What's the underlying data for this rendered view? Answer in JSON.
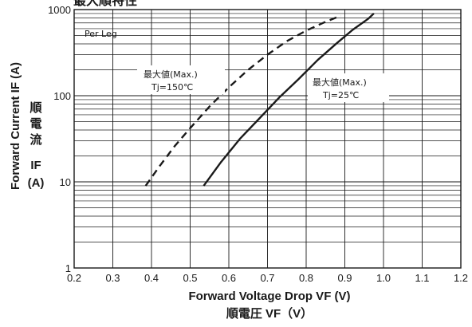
{
  "chart_data": {
    "type": "line",
    "title": "最大順特性",
    "xlabel": "Forward Voltage Drop VF (V)",
    "xlabel_jp": "順電圧 VF（V）",
    "ylabel": "Forward Current IF (A)",
    "ylabel_jp_chars": [
      "順",
      "電",
      "流"
    ],
    "ylabel_symbol": "IF",
    "ylabel_unit": "(A)",
    "xlim": [
      0.2,
      1.2
    ],
    "ylim": [
      1,
      1000
    ],
    "y_scale": "log",
    "grid": true,
    "x_ticks": [
      "0.2",
      "0.3",
      "0.4",
      "0.5",
      "0.6",
      "0.7",
      "0.8",
      "0.9",
      "1.0",
      "1.1",
      "1.2"
    ],
    "x_tick_values": [
      0.2,
      0.3,
      0.4,
      0.5,
      0.6,
      0.7,
      0.8,
      0.9,
      1.0,
      1.1,
      1.2
    ],
    "y_ticks": [
      "1",
      "10",
      "100",
      "1000"
    ],
    "y_tick_values": [
      1,
      10,
      100,
      1000
    ],
    "annotation": "Per Leg",
    "series": [
      {
        "label_line1": "最大値(Max.)",
        "label_line2": "Tj=150℃",
        "style": "dashed",
        "x": [
          0.385,
          0.42,
          0.46,
          0.5,
          0.55,
          0.6,
          0.65,
          0.7,
          0.75,
          0.8,
          0.85,
          0.89
        ],
        "y": [
          9,
          15,
          26,
          42,
          75,
          125,
          200,
          300,
          430,
          570,
          720,
          850
        ]
      },
      {
        "label_line1": "最大値(Max.)",
        "label_line2": "Tj=25℃",
        "style": "solid",
        "x": [
          0.535,
          0.58,
          0.63,
          0.68,
          0.73,
          0.78,
          0.83,
          0.88,
          0.92,
          0.96,
          0.975
        ],
        "y": [
          9,
          17,
          32,
          55,
          95,
          155,
          260,
          410,
          580,
          780,
          900
        ]
      }
    ]
  }
}
